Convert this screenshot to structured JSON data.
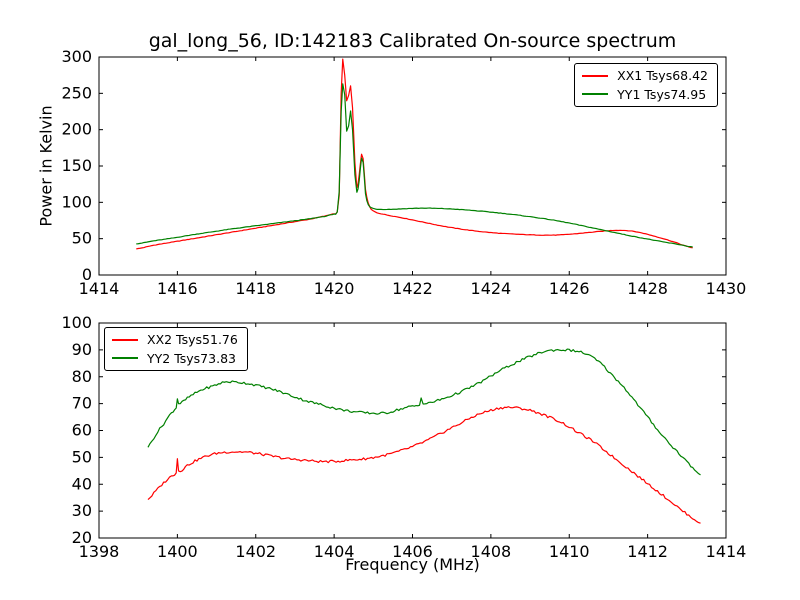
{
  "figure": {
    "background": "#ffffff",
    "frame_color": "#000000",
    "text_color": "#000000"
  },
  "chart_data": [
    {
      "type": "line",
      "title": "gal_long_56, ID:142183 Calibrated On-source spectrum",
      "xlabel": "",
      "ylabel": "Power in Kelvin",
      "xlim": [
        1414,
        1430
      ],
      "ylim": [
        0,
        300
      ],
      "xticks": [
        1414,
        1416,
        1418,
        1420,
        1422,
        1424,
        1426,
        1428,
        1430
      ],
      "yticks": [
        0,
        50,
        100,
        150,
        200,
        250,
        300
      ],
      "grid": false,
      "legend_position": "upper-right",
      "noise_amplitude": 0.3,
      "series": [
        {
          "name": "XX1",
          "label": "XX1 Tsys68.42",
          "tsys": 68.42,
          "color": "#ff0000",
          "points": [
            [
              1414.95,
              36
            ],
            [
              1415.4,
              41
            ],
            [
              1415.9,
              45.5
            ],
            [
              1416.4,
              50
            ],
            [
              1416.9,
              54.5
            ],
            [
              1417.4,
              59
            ],
            [
              1417.9,
              63.5
            ],
            [
              1418.4,
              68
            ],
            [
              1418.9,
              72.5
            ],
            [
              1419.4,
              77
            ],
            [
              1419.8,
              81.5
            ],
            [
              1420.0,
              84.5
            ],
            [
              1420.08,
              86.5
            ],
            [
              1420.13,
              110
            ],
            [
              1420.18,
              250
            ],
            [
              1420.22,
              297
            ],
            [
              1420.27,
              275
            ],
            [
              1420.32,
              240
            ],
            [
              1420.37,
              247
            ],
            [
              1420.42,
              260
            ],
            [
              1420.47,
              230
            ],
            [
              1420.53,
              155
            ],
            [
              1420.58,
              120
            ],
            [
              1420.64,
              138
            ],
            [
              1420.7,
              166
            ],
            [
              1420.74,
              160
            ],
            [
              1420.8,
              118
            ],
            [
              1420.87,
              99
            ],
            [
              1420.95,
              90
            ],
            [
              1421.1,
              85.5
            ],
            [
              1421.4,
              82
            ],
            [
              1421.8,
              78
            ],
            [
              1422.2,
              73.5
            ],
            [
              1422.7,
              68
            ],
            [
              1423.2,
              63.5
            ],
            [
              1423.7,
              60
            ],
            [
              1424.2,
              57.5
            ],
            [
              1424.7,
              56
            ],
            [
              1425.2,
              55
            ],
            [
              1425.7,
              55
            ],
            [
              1426.1,
              56.5
            ],
            [
              1426.5,
              58.5
            ],
            [
              1426.9,
              60.5
            ],
            [
              1427.2,
              61.5
            ],
            [
              1427.5,
              61
            ],
            [
              1427.8,
              58.5
            ],
            [
              1428.1,
              54.5
            ],
            [
              1428.4,
              50
            ],
            [
              1428.7,
              45
            ],
            [
              1429.0,
              39.5
            ],
            [
              1429.15,
              37.5
            ]
          ]
        },
        {
          "name": "YY1",
          "label": "YY1 Tsys74.95",
          "tsys": 74.95,
          "color": "#008000",
          "points": [
            [
              1414.95,
              43
            ],
            [
              1415.4,
              47
            ],
            [
              1415.9,
              51
            ],
            [
              1416.4,
              55.5
            ],
            [
              1416.9,
              59.5
            ],
            [
              1417.4,
              63.5
            ],
            [
              1417.9,
              67
            ],
            [
              1418.4,
              70.5
            ],
            [
              1418.9,
              74
            ],
            [
              1419.4,
              77.5
            ],
            [
              1419.8,
              81
            ],
            [
              1420.0,
              84
            ],
            [
              1420.08,
              86.5
            ],
            [
              1420.13,
              115
            ],
            [
              1420.18,
              225
            ],
            [
              1420.22,
              263
            ],
            [
              1420.27,
              248
            ],
            [
              1420.32,
              198
            ],
            [
              1420.37,
              205
            ],
            [
              1420.42,
              226
            ],
            [
              1420.47,
              200
            ],
            [
              1420.53,
              138
            ],
            [
              1420.58,
              114
            ],
            [
              1420.64,
              130
            ],
            [
              1420.7,
              161
            ],
            [
              1420.74,
              155
            ],
            [
              1420.8,
              112
            ],
            [
              1420.87,
              97
            ],
            [
              1420.95,
              92.5
            ],
            [
              1421.1,
              90.5
            ],
            [
              1421.5,
              90.5
            ],
            [
              1421.9,
              91.5
            ],
            [
              1422.3,
              92
            ],
            [
              1422.7,
              91.5
            ],
            [
              1423.1,
              90.5
            ],
            [
              1423.6,
              88.5
            ],
            [
              1424.1,
              86
            ],
            [
              1424.6,
              83
            ],
            [
              1425.1,
              79.5
            ],
            [
              1425.6,
              75.5
            ],
            [
              1426.0,
              71.5
            ],
            [
              1426.4,
              67
            ],
            [
              1426.8,
              62.5
            ],
            [
              1427.2,
              58
            ],
            [
              1427.6,
              53.5
            ],
            [
              1428.0,
              49.5
            ],
            [
              1428.4,
              45.5
            ],
            [
              1428.8,
              42
            ],
            [
              1429.15,
              38.5
            ]
          ]
        }
      ]
    },
    {
      "type": "line",
      "title": "",
      "xlabel": "Frequency (MHz)",
      "ylabel": "",
      "xlim": [
        1398,
        1414
      ],
      "ylim": [
        20,
        100
      ],
      "xticks": [
        1398,
        1400,
        1402,
        1404,
        1406,
        1408,
        1410,
        1412,
        1414
      ],
      "yticks": [
        20,
        30,
        40,
        50,
        60,
        70,
        80,
        90,
        100
      ],
      "grid": false,
      "legend_position": "upper-left",
      "noise_amplitude": 0.45,
      "series": [
        {
          "name": "XX2",
          "label": "XX2 Tsys51.76",
          "tsys": 51.76,
          "color": "#ff0000",
          "points": [
            [
              1399.25,
              34.5
            ],
            [
              1399.45,
              37.5
            ],
            [
              1399.65,
              40.5
            ],
            [
              1399.85,
              43
            ],
            [
              1399.97,
              44.5
            ],
            [
              1400.0,
              49.5
            ],
            [
              1400.03,
              45
            ],
            [
              1400.25,
              47
            ],
            [
              1400.5,
              49
            ],
            [
              1400.75,
              50.5
            ],
            [
              1401.0,
              51.5
            ],
            [
              1401.3,
              52
            ],
            [
              1401.7,
              52
            ],
            [
              1402.0,
              51.5
            ],
            [
              1402.4,
              50.5
            ],
            [
              1402.8,
              49.5
            ],
            [
              1403.2,
              49
            ],
            [
              1403.6,
              48.5
            ],
            [
              1404.0,
              48.5
            ],
            [
              1404.4,
              49
            ],
            [
              1404.8,
              49.5
            ],
            [
              1405.2,
              50.5
            ],
            [
              1405.6,
              52
            ],
            [
              1406.0,
              54
            ],
            [
              1406.4,
              56.5
            ],
            [
              1406.8,
              59.5
            ],
            [
              1407.2,
              62.5
            ],
            [
              1407.6,
              65.5
            ],
            [
              1408.0,
              67.5
            ],
            [
              1408.3,
              68.5
            ],
            [
              1408.6,
              68.5
            ],
            [
              1409.0,
              67.5
            ],
            [
              1409.4,
              65.5
            ],
            [
              1409.8,
              63
            ],
            [
              1410.2,
              59.5
            ],
            [
              1410.6,
              56
            ],
            [
              1411.0,
              51.5
            ],
            [
              1411.4,
              47
            ],
            [
              1411.8,
              42.5
            ],
            [
              1412.2,
              38
            ],
            [
              1412.6,
              33.5
            ],
            [
              1413.0,
              29
            ],
            [
              1413.2,
              27
            ],
            [
              1413.35,
              25.5
            ]
          ]
        },
        {
          "name": "YY2",
          "label": "YY2 Tsys73.83",
          "tsys": 73.83,
          "color": "#008000",
          "points": [
            [
              1399.25,
              54
            ],
            [
              1399.45,
              58.5
            ],
            [
              1399.65,
              62.5
            ],
            [
              1399.85,
              66.5
            ],
            [
              1399.97,
              68.5
            ],
            [
              1400.0,
              72
            ],
            [
              1400.03,
              70
            ],
            [
              1400.3,
              72.5
            ],
            [
              1400.6,
              75
            ],
            [
              1400.9,
              76.5
            ],
            [
              1401.2,
              78
            ],
            [
              1401.5,
              78
            ],
            [
              1401.8,
              77.5
            ],
            [
              1402.1,
              76.5
            ],
            [
              1402.5,
              75
            ],
            [
              1402.9,
              73
            ],
            [
              1403.3,
              71
            ],
            [
              1403.7,
              69.5
            ],
            [
              1404.1,
              68
            ],
            [
              1404.5,
              67
            ],
            [
              1404.9,
              66.5
            ],
            [
              1405.3,
              66.5
            ],
            [
              1405.7,
              68
            ],
            [
              1406.0,
              69
            ],
            [
              1406.18,
              69.5
            ],
            [
              1406.22,
              72.5
            ],
            [
              1406.27,
              70
            ],
            [
              1406.6,
              71
            ],
            [
              1407.0,
              73
            ],
            [
              1407.4,
              75.5
            ],
            [
              1407.8,
              78.5
            ],
            [
              1408.2,
              82
            ],
            [
              1408.6,
              85
            ],
            [
              1409.0,
              87.5
            ],
            [
              1409.4,
              89.5
            ],
            [
              1409.8,
              90
            ],
            [
              1410.2,
              89.5
            ],
            [
              1410.5,
              88
            ],
            [
              1410.8,
              85
            ],
            [
              1411.1,
              80.5
            ],
            [
              1411.4,
              76
            ],
            [
              1411.7,
              70.5
            ],
            [
              1412.0,
              65
            ],
            [
              1412.3,
              59.5
            ],
            [
              1412.6,
              54.5
            ],
            [
              1412.9,
              50
            ],
            [
              1413.2,
              45.5
            ],
            [
              1413.35,
              43.5
            ]
          ]
        }
      ]
    }
  ]
}
